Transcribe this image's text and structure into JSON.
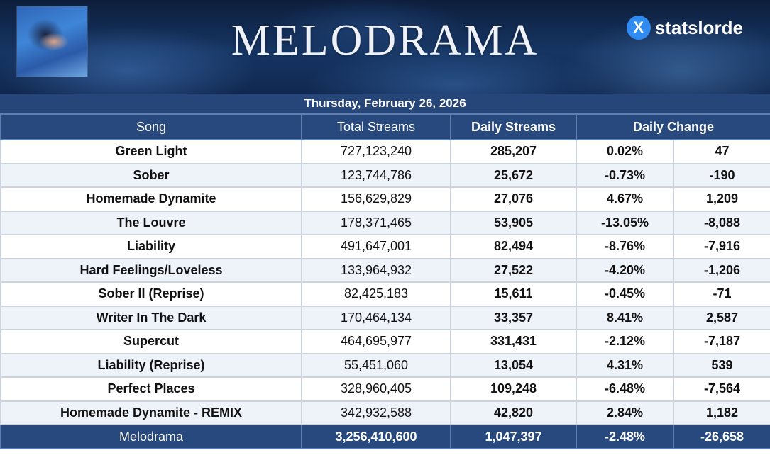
{
  "header": {
    "title": "MELODRAMA",
    "brand_icon": "X",
    "brand_name": "statslorde",
    "date": "Thursday, February 26, 2026"
  },
  "columns": [
    "Song",
    "Total Streams",
    "Daily Streams",
    "Daily Change"
  ],
  "rows": [
    {
      "song": "Green Light",
      "total": "727,123,240",
      "daily": "285,207",
      "pct": "0.02%",
      "delta": "47",
      "trend": "up"
    },
    {
      "song": "Sober",
      "total": "123,744,786",
      "daily": "25,672",
      "pct": "-0.73%",
      "delta": "-190",
      "trend": "down"
    },
    {
      "song": "Homemade Dynamite",
      "total": "156,629,829",
      "daily": "27,076",
      "pct": "4.67%",
      "delta": "1,209",
      "trend": "up"
    },
    {
      "song": "The Louvre",
      "total": "178,371,465",
      "daily": "53,905",
      "pct": "-13.05%",
      "delta": "-8,088",
      "trend": "down"
    },
    {
      "song": "Liability",
      "total": "491,647,001",
      "daily": "82,494",
      "pct": "-8.76%",
      "delta": "-7,916",
      "trend": "down"
    },
    {
      "song": "Hard Feelings/Loveless",
      "total": "133,964,932",
      "daily": "27,522",
      "pct": "-4.20%",
      "delta": "-1,206",
      "trend": "down"
    },
    {
      "song": "Sober II (Reprise)",
      "total": "82,425,183",
      "daily": "15,611",
      "pct": "-0.45%",
      "delta": "-71",
      "trend": "down"
    },
    {
      "song": "Writer In The Dark",
      "total": "170,464,134",
      "daily": "33,357",
      "pct": "8.41%",
      "delta": "2,587",
      "trend": "up"
    },
    {
      "song": "Supercut",
      "total": "464,695,977",
      "daily": "331,431",
      "pct": "-2.12%",
      "delta": "-7,187",
      "trend": "down"
    },
    {
      "song": "Liability (Reprise)",
      "total": "55,451,060",
      "daily": "13,054",
      "pct": "4.31%",
      "delta": "539",
      "trend": "up"
    },
    {
      "song": "Perfect Places",
      "total": "328,960,405",
      "daily": "109,248",
      "pct": "-6.48%",
      "delta": "-7,564",
      "trend": "down"
    },
    {
      "song": "Homemade Dynamite - REMIX",
      "total": "342,932,588",
      "daily": "42,820",
      "pct": "2.84%",
      "delta": "1,182",
      "trend": "up"
    }
  ],
  "footer": {
    "album": "Melodrama",
    "total": "3,256,410,600",
    "daily": "1,047,397",
    "pct": "-2.48%",
    "delta": "-26,658"
  },
  "colors": {
    "header_bg": "#28497e",
    "positive": "#3f9a2a",
    "negative": "#cc2a25"
  }
}
